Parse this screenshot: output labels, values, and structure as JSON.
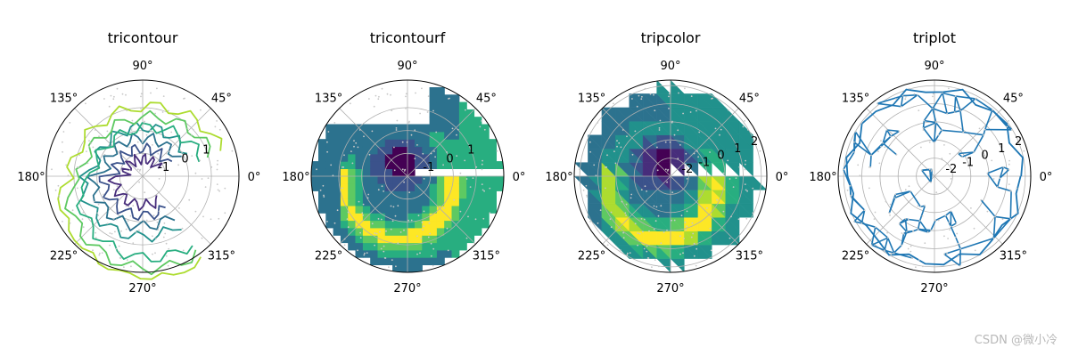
{
  "watermark": "CSDN @微小冷",
  "colors": {
    "viridis": [
      "#440154",
      "#472d7b",
      "#3b528b",
      "#2c728e",
      "#21918c",
      "#28ae80",
      "#5ec962",
      "#addc30",
      "#fde725"
    ],
    "line": "#1f77b4",
    "grid": "#b0b0b0",
    "points": "#c8c8c8"
  },
  "chart_data": [
    {
      "type": "tricontour",
      "title": "tricontour",
      "angle_ticks": [
        "0°",
        "45°",
        "90°",
        "135°",
        "180°",
        "225°",
        "270°",
        "315°"
      ],
      "radial_ticks": [
        "-1",
        "0",
        "1"
      ],
      "rlim": [
        -2,
        2
      ],
      "grid": true,
      "filled": false
    },
    {
      "type": "tricontourf",
      "title": "tricontourf",
      "angle_ticks": [
        "0°",
        "45°",
        "90°",
        "135°",
        "180°",
        "225°",
        "270°",
        "315°"
      ],
      "radial_ticks": [
        "-1",
        "0",
        "1"
      ],
      "rlim": [
        -2,
        2
      ],
      "grid": true,
      "filled": true
    },
    {
      "type": "tripcolor",
      "title": "tripcolor",
      "angle_ticks": [
        "0°",
        "45°",
        "90°",
        "135°",
        "180°",
        "225°",
        "270°",
        "315°"
      ],
      "radial_ticks": [
        "-2",
        "-1",
        "0",
        "1",
        "2"
      ],
      "rlim": [
        -2.5,
        2.5
      ],
      "grid": true,
      "filled": true
    },
    {
      "type": "triplot",
      "title": "triplot",
      "angle_ticks": [
        "0°",
        "45°",
        "90°",
        "135°",
        "180°",
        "225°",
        "270°",
        "315°"
      ],
      "radial_ticks": [
        "-2",
        "-1",
        "0",
        "1",
        "2"
      ],
      "rlim": [
        -2.5,
        2.5
      ],
      "grid": true,
      "filled": false
    }
  ]
}
